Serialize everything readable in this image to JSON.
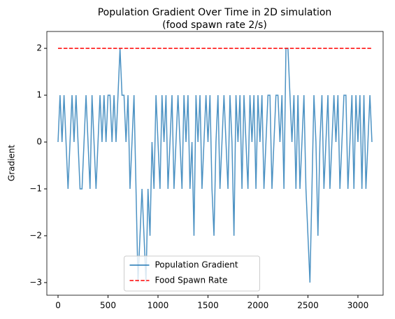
{
  "chart_data": {
    "type": "line",
    "title": "Population Gradient Over Time in 2D simulation",
    "subtitle": "(food spawn rate 2/s)",
    "ylabel": "Gradient",
    "xlim": [
      -112,
      3252
    ],
    "ylim": [
      -3.27,
      2.36
    ],
    "xticks": [
      0,
      500,
      1000,
      1500,
      2000,
      2500,
      3000
    ],
    "yticks": [
      {
        "value": -3,
        "label": "−3"
      },
      {
        "value": -2,
        "label": "−2"
      },
      {
        "value": -1,
        "label": "−1"
      },
      0,
      1,
      2
    ],
    "legend": "lower center",
    "series": [
      {
        "name": "Population Gradient",
        "color": "#1f77b4",
        "style": "solid",
        "x": [
          0,
          20,
          40,
          60,
          80,
          100,
          120,
          140,
          160,
          180,
          200,
          220,
          240,
          260,
          280,
          300,
          320,
          340,
          360,
          380,
          400,
          420,
          440,
          460,
          480,
          500,
          520,
          540,
          560,
          580,
          600,
          620,
          640,
          660,
          680,
          700,
          720,
          740,
          760,
          780,
          800,
          820,
          840,
          860,
          880,
          900,
          920,
          940,
          960,
          980,
          1000,
          1020,
          1040,
          1060,
          1080,
          1100,
          1120,
          1140,
          1160,
          1180,
          1200,
          1220,
          1240,
          1260,
          1280,
          1300,
          1320,
          1340,
          1360,
          1380,
          1400,
          1420,
          1440,
          1460,
          1480,
          1500,
          1520,
          1540,
          1560,
          1580,
          1600,
          1620,
          1640,
          1660,
          1680,
          1700,
          1720,
          1740,
          1760,
          1780,
          1800,
          1820,
          1840,
          1860,
          1880,
          1900,
          1920,
          1940,
          1960,
          1980,
          2000,
          2020,
          2040,
          2060,
          2080,
          2100,
          2120,
          2140,
          2160,
          2180,
          2200,
          2220,
          2240,
          2260,
          2280,
          2300,
          2320,
          2340,
          2360,
          2380,
          2400,
          2420,
          2440,
          2460,
          2480,
          2500,
          2520,
          2540,
          2560,
          2580,
          2600,
          2620,
          2640,
          2660,
          2680,
          2700,
          2720,
          2740,
          2760,
          2780,
          2800,
          2820,
          2840,
          2860,
          2880,
          2900,
          2920,
          2940,
          2960,
          2980,
          3000,
          3020,
          3040,
          3060,
          3080,
          3100,
          3120,
          3140
        ],
        "values": [
          0,
          1,
          0,
          1,
          0,
          -1,
          0,
          1,
          0,
          1,
          0,
          -1,
          -1,
          0,
          1,
          0,
          -1,
          1,
          0,
          -1,
          0,
          1,
          0,
          1,
          0,
          1,
          1,
          0,
          1,
          0,
          1,
          2,
          1,
          1,
          0,
          1,
          -1,
          0,
          1,
          -1,
          -3,
          -2,
          -1,
          -2,
          -3,
          -1,
          -2,
          0,
          -1,
          1,
          0,
          -1,
          1,
          0,
          1,
          -1,
          0,
          1,
          -1,
          0,
          1,
          0,
          -1,
          1,
          0,
          1,
          -1,
          0,
          -2,
          1,
          0,
          1,
          -1,
          0,
          1,
          0,
          1,
          -1,
          -2,
          0,
          1,
          -1,
          0,
          1,
          0,
          -1,
          1,
          0,
          -2,
          1,
          0,
          1,
          -1,
          1,
          0,
          -1,
          1,
          0,
          1,
          -1,
          1,
          0,
          1,
          -1,
          0,
          1,
          1,
          -1,
          0,
          1,
          1,
          0,
          1,
          -1,
          2,
          2,
          1,
          0,
          1,
          -1,
          1,
          -1,
          0,
          1,
          -1,
          -2,
          -3,
          -1,
          1,
          0,
          -2,
          0,
          1,
          -1,
          0,
          1,
          -1,
          0,
          1,
          0,
          1,
          -1,
          0,
          1,
          1,
          -1,
          0,
          1,
          -1,
          1,
          0,
          1,
          -1,
          1,
          -1,
          0,
          1,
          0
        ]
      },
      {
        "name": "Food Spawn Rate",
        "color": "#ff0000",
        "style": "dashed",
        "x": [
          0,
          3140
        ],
        "values": [
          2,
          2
        ]
      }
    ]
  }
}
